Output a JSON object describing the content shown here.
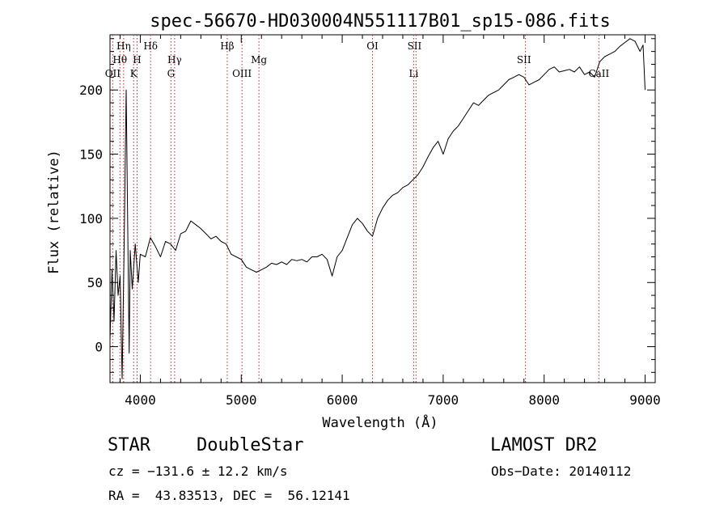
{
  "colors": {
    "spectrum": "#000000",
    "line_marker": "#cc2222",
    "axes": "#000000",
    "background": "#ffffff"
  },
  "chart_data": {
    "type": "line",
    "title": "spec-56670-HD030004N551117B01_sp15-086.fits",
    "xlabel": "Wavelength (Å)",
    "ylabel": "Flux (relative)",
    "xlim": [
      3700,
      9100
    ],
    "ylim": [
      -28,
      243
    ],
    "grid": false,
    "x_ticks": [
      4000,
      5000,
      6000,
      7000,
      8000,
      9000
    ],
    "x_tick_labels": [
      "4000",
      "5000",
      "6000",
      "7000",
      "8000",
      "9000"
    ],
    "y_ticks": [
      0,
      50,
      100,
      150,
      200
    ],
    "y_tick_labels": [
      "0",
      "50",
      "100",
      "150",
      "200"
    ],
    "series": [
      {
        "x": [
          3700,
          3720,
          3740,
          3760,
          3780,
          3800,
          3820,
          3840,
          3860,
          3880,
          3890,
          3900,
          3920,
          3950,
          3980,
          4000,
          4050,
          4100,
          4150,
          4200,
          4250,
          4300,
          4350,
          4400,
          4450,
          4500,
          4550,
          4600,
          4650,
          4700,
          4750,
          4800,
          4850,
          4900,
          4950,
          5000,
          5050,
          5100,
          5150,
          5200,
          5250,
          5300,
          5350,
          5400,
          5450,
          5500,
          5550,
          5600,
          5650,
          5700,
          5750,
          5800,
          5850,
          5900,
          5950,
          6000,
          6050,
          6100,
          6150,
          6200,
          6250,
          6300,
          6350,
          6400,
          6450,
          6500,
          6550,
          6600,
          6650,
          6700,
          6750,
          6800,
          6850,
          6900,
          6950,
          7000,
          7050,
          7100,
          7150,
          7200,
          7250,
          7300,
          7350,
          7400,
          7450,
          7500,
          7550,
          7600,
          7650,
          7700,
          7750,
          7800,
          7850,
          7900,
          7950,
          8000,
          8050,
          8100,
          8150,
          8200,
          8250,
          8300,
          8350,
          8400,
          8450,
          8500,
          8550,
          8600,
          8650,
          8700,
          8750,
          8800,
          8850,
          8900,
          8950,
          8980,
          9000
        ],
        "y": [
          5,
          60,
          20,
          75,
          40,
          55,
          -25,
          80,
          200,
          60,
          -5,
          75,
          45,
          80,
          50,
          72,
          70,
          85,
          78,
          70,
          82,
          80,
          75,
          88,
          90,
          98,
          95,
          92,
          88,
          84,
          86,
          82,
          80,
          72,
          70,
          68,
          62,
          60,
          58,
          60,
          62,
          65,
          64,
          66,
          64,
          68,
          67,
          68,
          66,
          70,
          70,
          72,
          68,
          55,
          70,
          75,
          85,
          95,
          100,
          96,
          90,
          86,
          100,
          108,
          114,
          118,
          120,
          124,
          126,
          130,
          134,
          140,
          148,
          155,
          160,
          150,
          162,
          168,
          172,
          178,
          184,
          190,
          188,
          192,
          196,
          198,
          200,
          204,
          208,
          210,
          212,
          210,
          204,
          206,
          208,
          212,
          216,
          218,
          214,
          215,
          216,
          214,
          218,
          212,
          214,
          210,
          222,
          226,
          228,
          230,
          234,
          237,
          240,
          238,
          230,
          235,
          200
        ]
      }
    ],
    "lines_top": [
      {
        "label": "Hη",
        "wave": 3835
      },
      {
        "label": "Hδ",
        "wave": 4102
      },
      {
        "label": "Hβ",
        "wave": 4861
      },
      {
        "label": "OI",
        "wave": 6300
      },
      {
        "label": "SII",
        "wave": 6716
      }
    ],
    "lines_mid": [
      {
        "label": "Hθ",
        "wave": 3798
      },
      {
        "label": "H",
        "wave": 3968
      },
      {
        "label": "Hγ",
        "wave": 4340
      },
      {
        "label": "Mg",
        "wave": 5175
      },
      {
        "label": "SII",
        "wave": 7800
      }
    ],
    "lines_low": [
      {
        "label": "OII",
        "wave": 3727
      },
      {
        "label": "K",
        "wave": 3934
      },
      {
        "label": "G",
        "wave": 4304
      },
      {
        "label": "OIII",
        "wave": 5007
      },
      {
        "label": "Li",
        "wave": 6708
      },
      {
        "label": "CaII",
        "wave": 8542
      }
    ],
    "marker_waves": [
      3727,
      3798,
      3835,
      3934,
      3968,
      4102,
      4304,
      4340,
      4861,
      5007,
      5175,
      6300,
      6708,
      6731,
      7815,
      8542
    ]
  },
  "info": {
    "class_label": "STAR",
    "subclass": "DoubleStar",
    "survey": "LAMOST DR2",
    "cz": "cz = −131.6 ± 12.2 km/s",
    "obs_date": "Obs−Date: 20140112",
    "radec": "RA =  43.83513, DEC =  56.12141"
  }
}
